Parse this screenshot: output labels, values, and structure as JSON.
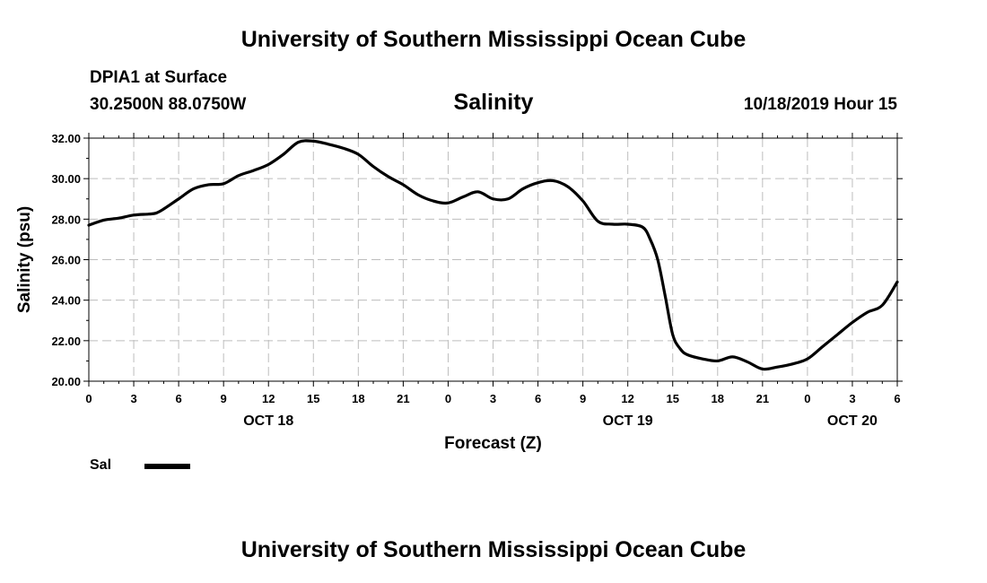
{
  "header": {
    "title": "University of Southern Mississippi Ocean Cube",
    "station": "DPIA1 at Surface",
    "coordinates": "30.2500N 88.0750W",
    "parameter": "Salinity",
    "datetime": "10/18/2019 Hour 15"
  },
  "footer": {
    "title": "University of Southern Mississippi Ocean Cube"
  },
  "legend": {
    "label": "Sal",
    "color": "#000000"
  },
  "chart_data": {
    "type": "line",
    "title": "Salinity",
    "xlabel": "Forecast (Z)",
    "ylabel": "Salinity (psu)",
    "xlim": [
      0,
      54
    ],
    "ylim": [
      20,
      32
    ],
    "y_ticks": [
      "20.00",
      "22.00",
      "24.00",
      "26.00",
      "28.00",
      "30.00",
      "32.00"
    ],
    "y_tick_values": [
      20,
      22,
      24,
      26,
      28,
      30,
      32
    ],
    "x_ticks": [
      {
        "h": 0,
        "label": "0"
      },
      {
        "h": 3,
        "label": "3"
      },
      {
        "h": 6,
        "label": "6"
      },
      {
        "h": 9,
        "label": "9"
      },
      {
        "h": 12,
        "label": "12"
      },
      {
        "h": 15,
        "label": "15"
      },
      {
        "h": 18,
        "label": "18"
      },
      {
        "h": 21,
        "label": "21"
      },
      {
        "h": 24,
        "label": "0"
      },
      {
        "h": 27,
        "label": "3"
      },
      {
        "h": 30,
        "label": "6"
      },
      {
        "h": 33,
        "label": "9"
      },
      {
        "h": 36,
        "label": "12"
      },
      {
        "h": 39,
        "label": "15"
      },
      {
        "h": 42,
        "label": "18"
      },
      {
        "h": 45,
        "label": "21"
      },
      {
        "h": 48,
        "label": "0"
      },
      {
        "h": 51,
        "label": "3"
      },
      {
        "h": 54,
        "label": "6"
      }
    ],
    "date_labels": [
      {
        "h": 12,
        "label": "OCT 18"
      },
      {
        "h": 36,
        "label": "OCT 19"
      },
      {
        "h": 51,
        "label": "OCT 20"
      }
    ],
    "grid": true,
    "series": [
      {
        "name": "Sal",
        "color": "#000000",
        "x": [
          0,
          1,
          2,
          3,
          4,
          4.5,
          5,
          6,
          7,
          8,
          9,
          10,
          11,
          12,
          13,
          14,
          15,
          16,
          17,
          18,
          19,
          20,
          21,
          22,
          23,
          24,
          25,
          26,
          27,
          28,
          29,
          30,
          31,
          32,
          33,
          34,
          35,
          36,
          37,
          37.5,
          38,
          38.5,
          39,
          39.5,
          40,
          41,
          42,
          43,
          44,
          45,
          46,
          47,
          48,
          49,
          50,
          51,
          52,
          53,
          54
        ],
        "values": [
          27.7,
          27.95,
          28.05,
          28.2,
          28.25,
          28.3,
          28.5,
          29.0,
          29.5,
          29.7,
          29.75,
          30.15,
          30.4,
          30.7,
          31.2,
          31.8,
          31.85,
          31.7,
          31.5,
          31.2,
          30.6,
          30.1,
          29.7,
          29.2,
          28.9,
          28.8,
          29.1,
          29.35,
          29.0,
          29.0,
          29.5,
          29.8,
          29.9,
          29.6,
          28.9,
          27.9,
          27.75,
          27.75,
          27.6,
          27.0,
          26.0,
          24.2,
          22.3,
          21.6,
          21.3,
          21.1,
          21.0,
          21.2,
          20.95,
          20.6,
          20.7,
          20.85,
          21.1,
          21.7,
          22.3,
          22.9,
          23.4,
          23.75,
          24.9
        ]
      }
    ]
  }
}
